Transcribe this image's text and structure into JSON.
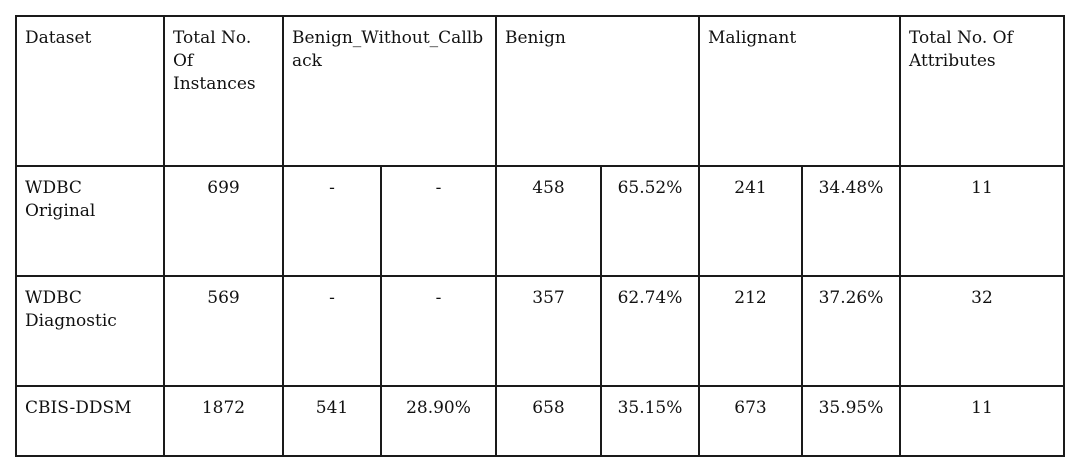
{
  "table": {
    "headers": {
      "dataset": "Dataset",
      "total_instances": "Total No. Of Instances",
      "benign_without_callback": "Benign_Without_Callback",
      "benign": "Benign",
      "malignant": "Malignant",
      "total_attributes": "Total No. Of Attributes"
    },
    "rows": [
      {
        "dataset": "WDBC Original",
        "total_instances": "699",
        "bwc_count": "-",
        "bwc_pct": "-",
        "benign_count": "458",
        "benign_pct": "65.52%",
        "malignant_count": "241",
        "malignant_pct": "34.48%",
        "total_attributes": "11"
      },
      {
        "dataset": "WDBC Diagnostic",
        "total_instances": "569",
        "bwc_count": "-",
        "bwc_pct": "-",
        "benign_count": "357",
        "benign_pct": "62.74%",
        "malignant_count": "212",
        "malignant_pct": "37.26%",
        "total_attributes": "32"
      },
      {
        "dataset": "CBIS-DDSM",
        "total_instances": "1872",
        "bwc_count": "541",
        "bwc_pct": "28.90%",
        "benign_count": "658",
        "benign_pct": "35.15%",
        "malignant_count": "673",
        "malignant_pct": "35.95%",
        "total_attributes": "11"
      }
    ]
  }
}
